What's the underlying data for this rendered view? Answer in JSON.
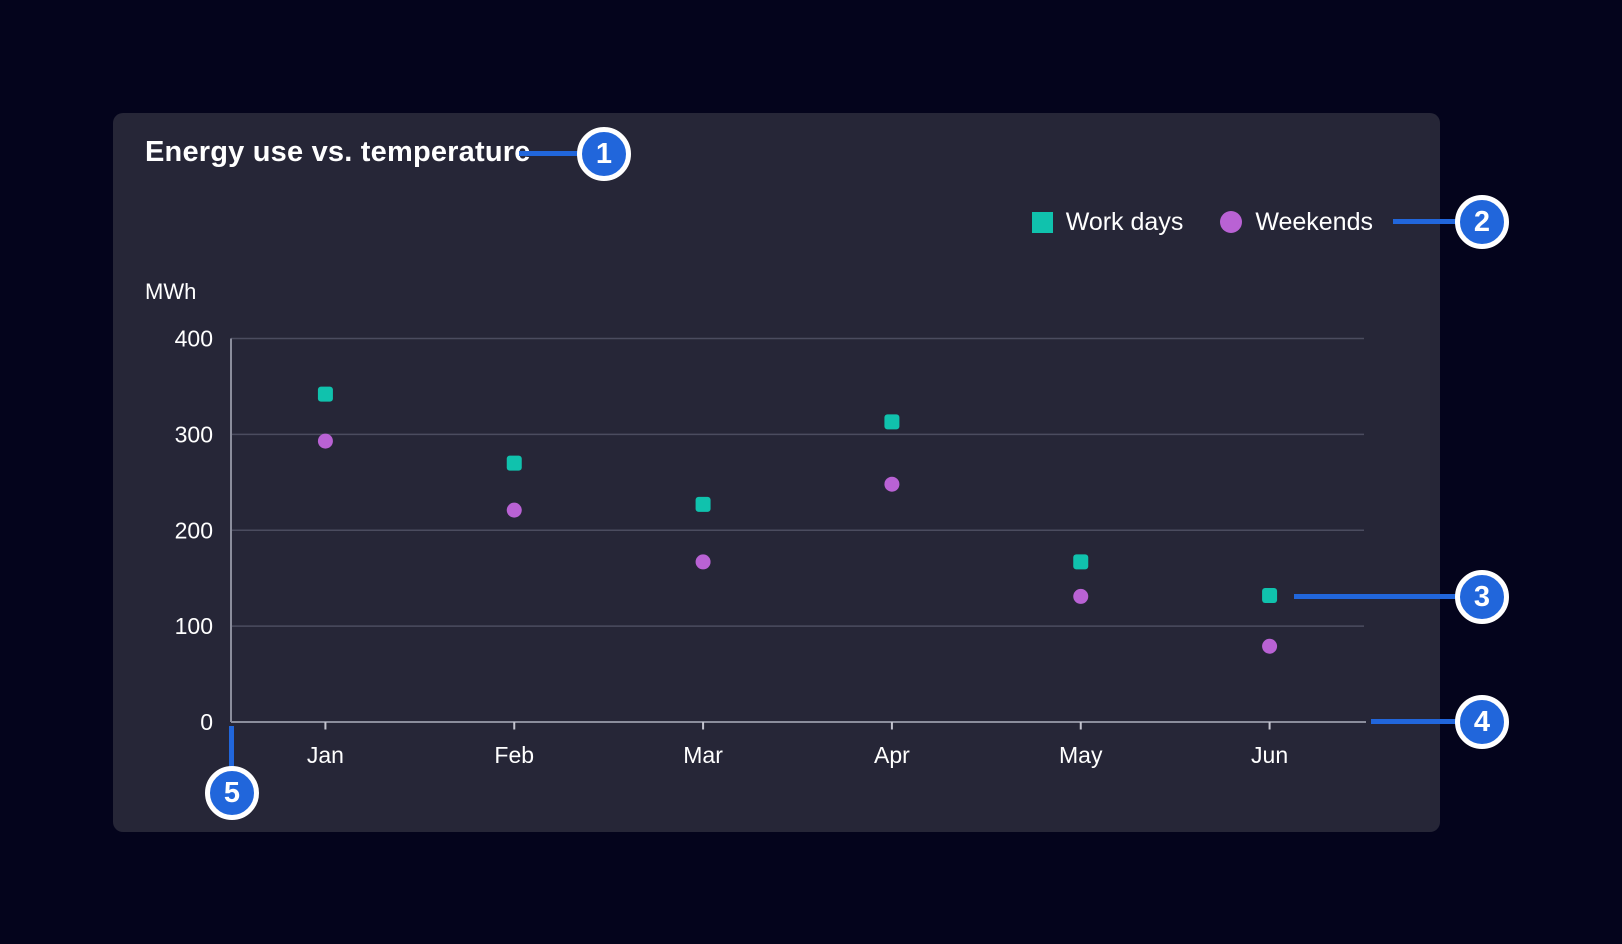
{
  "chart_data": {
    "type": "scatter",
    "title": "Energy use vs. temperature",
    "ylabel": "MWh",
    "xlabel": "",
    "categories": [
      "Jan",
      "Feb",
      "Mar",
      "Apr",
      "May",
      "Jun"
    ],
    "series": [
      {
        "name": "Work days",
        "marker": "square",
        "color": "#10c2ad",
        "values": [
          342,
          270,
          227,
          313,
          167,
          132
        ]
      },
      {
        "name": "Weekends",
        "marker": "circle",
        "color": "#b962d4",
        "values": [
          293,
          221,
          167,
          248,
          131,
          79
        ]
      }
    ],
    "ylim": [
      0,
      400
    ],
    "yticks": [
      0,
      100,
      200,
      300,
      400
    ],
    "grid": "horizontal",
    "legend_position": "top-right"
  },
  "callouts": [
    {
      "number": "1",
      "target": "chart-title"
    },
    {
      "number": "2",
      "target": "legend"
    },
    {
      "number": "3",
      "target": "data-point-jun-work-days"
    },
    {
      "number": "4",
      "target": "x-axis"
    },
    {
      "number": "5",
      "target": "y-axis-origin"
    }
  ],
  "colors": {
    "page_background": "#04041c",
    "card_background": "#262637",
    "work_days": "#10c2ad",
    "weekends": "#b962d4",
    "callout_blue": "#2166db",
    "gridline": "#4b4c5f",
    "axis": "#8b8d9c",
    "tick_mark": "#c4c4cf",
    "text": "#ffffff"
  }
}
